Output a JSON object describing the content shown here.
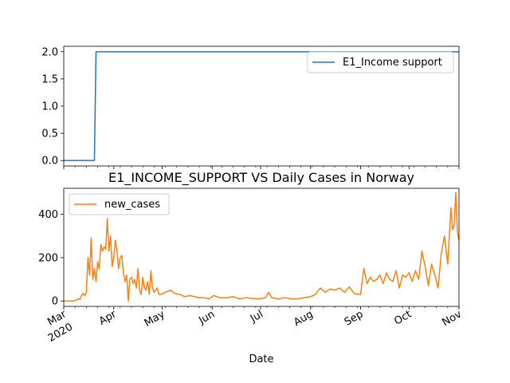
{
  "chart_data": [
    {
      "type": "line",
      "title": "",
      "xlabel": "",
      "ylabel": "",
      "xlim": [
        "2020-03-01",
        "2020-11-01"
      ],
      "ylim": [
        -0.1,
        2.1
      ],
      "yticks": [
        "0.0",
        "0.5",
        "1.0",
        "1.5",
        "2.0"
      ],
      "ytick_values": [
        0,
        0.5,
        1.0,
        1.5,
        2.0
      ],
      "legend_position": "top-right",
      "color": "#1f77b4",
      "series": [
        {
          "name": "E1_Income support",
          "x": [
            "2020-03-01",
            "2020-03-20",
            "2020-03-21",
            "2020-11-01"
          ],
          "values": [
            0,
            0,
            2,
            2
          ]
        }
      ]
    },
    {
      "type": "line",
      "title": "E1_INCOME_SUPPORT VS Daily Cases in Norway",
      "xlabel": "Date",
      "ylabel": "",
      "xlim": [
        "2020-03-01",
        "2020-11-01"
      ],
      "ylim": [
        -25,
        520
      ],
      "yticks": [
        "0",
        "200",
        "400"
      ],
      "ytick_values": [
        0,
        200,
        400
      ],
      "legend_position": "top-left",
      "color": "#ff7f0e",
      "xticks": [
        {
          "date": "2020-03-01",
          "label": "Mar",
          "sublabel": "2020"
        },
        {
          "date": "2020-04-01",
          "label": "Apr"
        },
        {
          "date": "2020-05-01",
          "label": "May"
        },
        {
          "date": "2020-06-01",
          "label": "Jun"
        },
        {
          "date": "2020-07-01",
          "label": "Jul"
        },
        {
          "date": "2020-08-01",
          "label": "Aug"
        },
        {
          "date": "2020-09-01",
          "label": "Sep"
        },
        {
          "date": "2020-10-01",
          "label": "Oct"
        },
        {
          "date": "2020-11-01",
          "label": "Nov"
        }
      ],
      "series": [
        {
          "name": "new_cases",
          "x": [
            "2020-03-01",
            "2020-03-02",
            "2020-03-03",
            "2020-03-04",
            "2020-03-05",
            "2020-03-06",
            "2020-03-07",
            "2020-03-08",
            "2020-03-09",
            "2020-03-10",
            "2020-03-11",
            "2020-03-12",
            "2020-03-13",
            "2020-03-14",
            "2020-03-15",
            "2020-03-16",
            "2020-03-17",
            "2020-03-18",
            "2020-03-19",
            "2020-03-20",
            "2020-03-21",
            "2020-03-22",
            "2020-03-23",
            "2020-03-24",
            "2020-03-25",
            "2020-03-26",
            "2020-03-27",
            "2020-03-28",
            "2020-03-29",
            "2020-03-30",
            "2020-03-31",
            "2020-04-01",
            "2020-04-02",
            "2020-04-03",
            "2020-04-04",
            "2020-04-05",
            "2020-04-06",
            "2020-04-07",
            "2020-04-08",
            "2020-04-09",
            "2020-04-10",
            "2020-04-11",
            "2020-04-12",
            "2020-04-13",
            "2020-04-14",
            "2020-04-15",
            "2020-04-16",
            "2020-04-17",
            "2020-04-18",
            "2020-04-19",
            "2020-04-20",
            "2020-04-21",
            "2020-04-22",
            "2020-04-23",
            "2020-04-24",
            "2020-04-25",
            "2020-04-26",
            "2020-04-27",
            "2020-04-28",
            "2020-04-29",
            "2020-04-30",
            "2020-05-03",
            "2020-05-06",
            "2020-05-09",
            "2020-05-12",
            "2020-05-15",
            "2020-05-18",
            "2020-05-21",
            "2020-05-24",
            "2020-05-27",
            "2020-05-30",
            "2020-06-02",
            "2020-06-06",
            "2020-06-10",
            "2020-06-14",
            "2020-06-18",
            "2020-06-22",
            "2020-06-26",
            "2020-06-30",
            "2020-07-04",
            "2020-07-06",
            "2020-07-08",
            "2020-07-12",
            "2020-07-16",
            "2020-07-20",
            "2020-07-24",
            "2020-07-28",
            "2020-08-01",
            "2020-08-04",
            "2020-08-07",
            "2020-08-10",
            "2020-08-13",
            "2020-08-16",
            "2020-08-19",
            "2020-08-22",
            "2020-08-25",
            "2020-08-28",
            "2020-09-01",
            "2020-09-03",
            "2020-09-05",
            "2020-09-07",
            "2020-09-09",
            "2020-09-11",
            "2020-09-13",
            "2020-09-15",
            "2020-09-17",
            "2020-09-19",
            "2020-09-21",
            "2020-09-23",
            "2020-09-25",
            "2020-09-27",
            "2020-09-29",
            "2020-10-01",
            "2020-10-03",
            "2020-10-05",
            "2020-10-07",
            "2020-10-09",
            "2020-10-11",
            "2020-10-13",
            "2020-10-15",
            "2020-10-17",
            "2020-10-19",
            "2020-10-21",
            "2020-10-23",
            "2020-10-25",
            "2020-10-27",
            "2020-10-28",
            "2020-10-29",
            "2020-10-30",
            "2020-10-31",
            "2020-11-01"
          ],
          "values": [
            0,
            0,
            0,
            0,
            0,
            0,
            0,
            2,
            5,
            10,
            8,
            25,
            35,
            25,
            40,
            200,
            120,
            290,
            100,
            150,
            90,
            180,
            150,
            260,
            230,
            250,
            240,
            380,
            230,
            300,
            160,
            200,
            280,
            230,
            150,
            200,
            210,
            130,
            90,
            120,
            0,
            100,
            110,
            80,
            100,
            60,
            150,
            50,
            30,
            110,
            60,
            50,
            90,
            30,
            140,
            60,
            40,
            50,
            60,
            30,
            30,
            40,
            50,
            35,
            30,
            20,
            25,
            20,
            15,
            15,
            10,
            25,
            15,
            15,
            20,
            10,
            15,
            12,
            10,
            15,
            40,
            15,
            10,
            15,
            10,
            10,
            15,
            20,
            30,
            60,
            40,
            55,
            50,
            60,
            40,
            65,
            35,
            30,
            150,
            80,
            110,
            90,
            100,
            120,
            80,
            130,
            100,
            90,
            140,
            60,
            120,
            110,
            130,
            90,
            140,
            100,
            230,
            160,
            70,
            170,
            120,
            60,
            220,
            300,
            170,
            430,
            330,
            350,
            500,
            320,
            280
          ]
        }
      ]
    }
  ]
}
